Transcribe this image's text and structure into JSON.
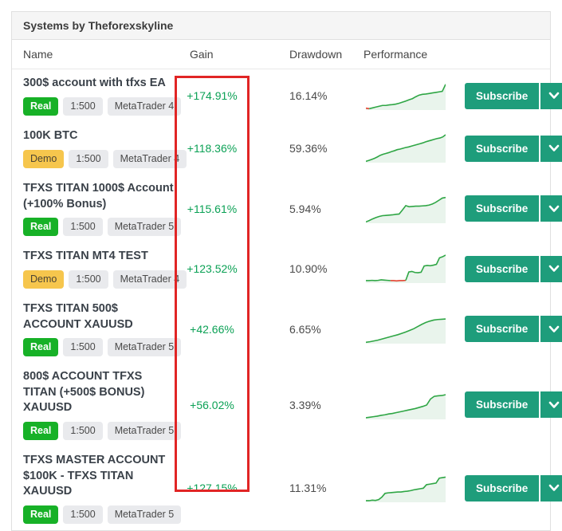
{
  "widget": {
    "title": "Systems by Theforexskyline"
  },
  "columns": {
    "name": "Name",
    "gain": "Gain",
    "drawdown": "Drawdown",
    "performance": "Performance"
  },
  "actions": {
    "subscribe_label": "Subscribe",
    "caret_icon": "chevron-down"
  },
  "colors": {
    "accent_button": "#1e9d7b",
    "badge_real": "#17b127",
    "badge_demo": "#f6c64d",
    "badge_neutral": "#e9eaed",
    "gain_text": "#0ba155",
    "highlight_box": "#e12525",
    "spark_line": "#2fa645",
    "spark_line_negative": "#e3402f",
    "spark_fill": "#e9f4ec"
  },
  "rows": [
    {
      "name": "300$ account with tfxs EA",
      "badges": [
        {
          "label": "Real",
          "type": "real"
        },
        {
          "label": "1:500",
          "type": "neutral"
        },
        {
          "label": "MetaTrader 4",
          "type": "neutral"
        }
      ],
      "gain": "+174.91%",
      "drawdown": "16.14%",
      "spark": {
        "values": [
          4,
          2,
          5,
          8,
          11,
          14,
          14,
          16,
          17,
          19,
          22,
          26,
          30,
          35,
          39,
          46,
          52,
          55,
          56,
          58,
          60,
          62,
          64,
          66,
          92
        ],
        "red_segments": [
          [
            0,
            1
          ]
        ]
      }
    },
    {
      "name": "100K BTC",
      "badges": [
        {
          "label": "Demo",
          "type": "demo"
        },
        {
          "label": "1:500",
          "type": "neutral"
        },
        {
          "label": "MetaTrader 4",
          "type": "neutral"
        }
      ],
      "gain": "+118.36%",
      "drawdown": "59.36%",
      "spark": {
        "values": [
          2,
          5,
          9,
          13,
          18,
          24,
          28,
          31,
          34,
          38,
          41,
          45,
          47,
          50,
          53,
          55,
          58,
          61,
          64,
          67,
          70,
          74,
          77,
          80,
          83,
          86,
          88,
          92,
          100
        ],
        "red_segments": []
      }
    },
    {
      "name": "TFXS TITAN 1000$ Account (+100% Bonus)",
      "badges": [
        {
          "label": "Real",
          "type": "real"
        },
        {
          "label": "1:500",
          "type": "neutral"
        },
        {
          "label": "MetaTrader 5",
          "type": "neutral"
        }
      ],
      "gain": "+115.61%",
      "drawdown": "5.94%",
      "spark": {
        "values": [
          2,
          7,
          13,
          18,
          22,
          25,
          26,
          27,
          28,
          30,
          31,
          46,
          62,
          58,
          59,
          60,
          60,
          61,
          62,
          64,
          68,
          74,
          82,
          90,
          92
        ],
        "red_segments": []
      }
    },
    {
      "name": "TFXS TITAN MT4 TEST",
      "badges": [
        {
          "label": "Demo",
          "type": "demo"
        },
        {
          "label": "1:500",
          "type": "neutral"
        },
        {
          "label": "MetaTrader 4",
          "type": "neutral"
        }
      ],
      "gain": "+123.52%",
      "drawdown": "10.90%",
      "spark": {
        "values": [
          6,
          6,
          7,
          6,
          7,
          9,
          8,
          7,
          6,
          6,
          5,
          6,
          6,
          7,
          38,
          40,
          36,
          35,
          37,
          60,
          62,
          61,
          63,
          66,
          90,
          94,
          100
        ],
        "red_segments": [
          [
            8,
            13
          ]
        ]
      }
    },
    {
      "name": "TFXS TITAN 500$ ACCOUNT XAUUSD",
      "badges": [
        {
          "label": "Real",
          "type": "real"
        },
        {
          "label": "1:500",
          "type": "neutral"
        },
        {
          "label": "MetaTrader 5",
          "type": "neutral"
        }
      ],
      "gain": "+42.66%",
      "drawdown": "6.65%",
      "spark": {
        "values": [
          2,
          4,
          7,
          10,
          14,
          18,
          22,
          26,
          30,
          35,
          40,
          46,
          52,
          60,
          68,
          75,
          80,
          84,
          86,
          87,
          88
        ],
        "red_segments": []
      }
    },
    {
      "name": "800$ ACCOUNT TFXS TITAN (+500$ BONUS) XAUUSD",
      "badges": [
        {
          "label": "Real",
          "type": "real"
        },
        {
          "label": "1:500",
          "type": "neutral"
        },
        {
          "label": "MetaTrader 5",
          "type": "neutral"
        }
      ],
      "gain": "+56.02%",
      "drawdown": "3.39%",
      "spark": {
        "values": [
          3,
          5,
          7,
          9,
          12,
          14,
          17,
          19,
          22,
          25,
          28,
          31,
          34,
          37,
          41,
          45,
          50,
          72,
          82,
          84,
          85,
          88
        ],
        "red_segments": []
      }
    },
    {
      "name": "TFXS MASTER ACCOUNT $100K - TFXS TITAN XAUUSD",
      "badges": [
        {
          "label": "Real",
          "type": "real"
        },
        {
          "label": "1:500",
          "type": "neutral"
        },
        {
          "label": "MetaTrader 5",
          "type": "neutral"
        }
      ],
      "gain": "+127.15%",
      "drawdown": "11.31%",
      "spark": {
        "values": [
          3,
          3,
          5,
          4,
          7,
          16,
          30,
          32,
          33,
          34,
          35,
          35,
          37,
          38,
          40,
          43,
          45,
          47,
          49,
          62,
          64,
          66,
          68,
          86,
          88,
          90
        ],
        "red_segments": []
      }
    }
  ]
}
